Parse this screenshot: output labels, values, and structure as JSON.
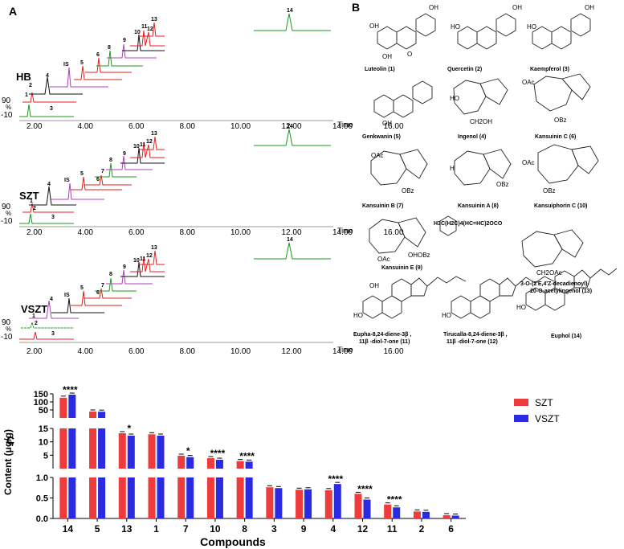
{
  "panels": {
    "a": "A",
    "b": "B",
    "c": "C"
  },
  "chromatograms": {
    "x_label": "Time",
    "x_ticks": [
      "2.00",
      "4.00",
      "6.00",
      "8.00",
      "10.00",
      "12.00",
      "14.00",
      "16.00"
    ],
    "y_ticks": [
      "90",
      "%",
      "-10"
    ],
    "traces": [
      {
        "name": "HB",
        "peak_labels": [
          "1",
          "2",
          "3",
          "4",
          "IS",
          "5",
          "6",
          "7",
          "8",
          "9",
          "10",
          "11",
          "12",
          "13",
          "14"
        ]
      },
      {
        "name": "SZT",
        "peak_labels": [
          "1",
          "2",
          "3",
          "4",
          "IS",
          "5",
          "6",
          "7",
          "8",
          "9",
          "10",
          "11",
          "12",
          "13",
          "14"
        ]
      },
      {
        "name": "VSZT",
        "peak_labels": [
          "1",
          "2",
          "3",
          "4",
          "IS",
          "5",
          "6",
          "7",
          "8",
          "9",
          "10",
          "11",
          "12",
          "13",
          "14"
        ]
      }
    ],
    "colors": {
      "green": "#1a9a1a",
      "red": "#e31e1e",
      "black": "#111111",
      "magenta": "#b03cc0"
    }
  },
  "structures": [
    "Luteolin (1)",
    "Quercetin (2)",
    "Kaempferol (3)",
    "Genkwanin (5)",
    "Ingenol (4)",
    "Kansuinin C (6)",
    "Kansuinin B (7)",
    "Kansuinin A (8)",
    "Kansuiphorin C (10)",
    "Kansuinin E (9)",
    "H3C(H2C)4(HC=HC)2OCO",
    "3-O-(2'E,4'Z-decadienoyl)-",
    "20-O-acetylingenol (13)",
    "Eupha-8,24-diene-3β ,",
    "11β -diol-7-one (11)",
    "Tirucalla-8,24-diene-3β ,",
    "11β -diol-7-one (12)",
    "Euphol (14)"
  ],
  "structure_fragments": [
    "OH",
    "OAc",
    "OBz",
    "CH2OH",
    "H",
    "O",
    "CH2OAc",
    "OHOBz",
    "HO"
  ],
  "chart_data": {
    "type": "bar",
    "xlabel": "Compounds",
    "ylabel": "Content (μg/g)",
    "categories": [
      "14",
      "5",
      "13",
      "1",
      "7",
      "10",
      "8",
      "3",
      "9",
      "4",
      "12",
      "11",
      "2",
      "6"
    ],
    "series": [
      {
        "name": "SZT",
        "color": "#ee3b3b",
        "values": [
          126,
          40,
          13.2,
          12.8,
          4.8,
          3.9,
          2.8,
          0.76,
          0.7,
          0.69,
          0.6,
          0.34,
          0.17,
          0.08
        ]
      },
      {
        "name": "VSZT",
        "color": "#2a2ae0",
        "values": [
          145,
          39,
          12.3,
          12.3,
          4.3,
          3.3,
          2.6,
          0.74,
          0.71,
          0.84,
          0.46,
          0.27,
          0.16,
          0.07
        ]
      }
    ],
    "significance": [
      "****",
      "",
      "*",
      "",
      "*",
      "****",
      "****",
      "",
      "",
      "****",
      "****",
      "****",
      "",
      ""
    ],
    "y_segments": [
      {
        "range": [
          0,
          1.0
        ],
        "ticks": [
          "0.0",
          "0.5",
          "1.0"
        ]
      },
      {
        "range": [
          0,
          15
        ],
        "ticks": [
          "5",
          "10",
          "15"
        ]
      },
      {
        "range": [
          0,
          150
        ],
        "ticks": [
          "50",
          "100",
          "150"
        ]
      }
    ]
  }
}
